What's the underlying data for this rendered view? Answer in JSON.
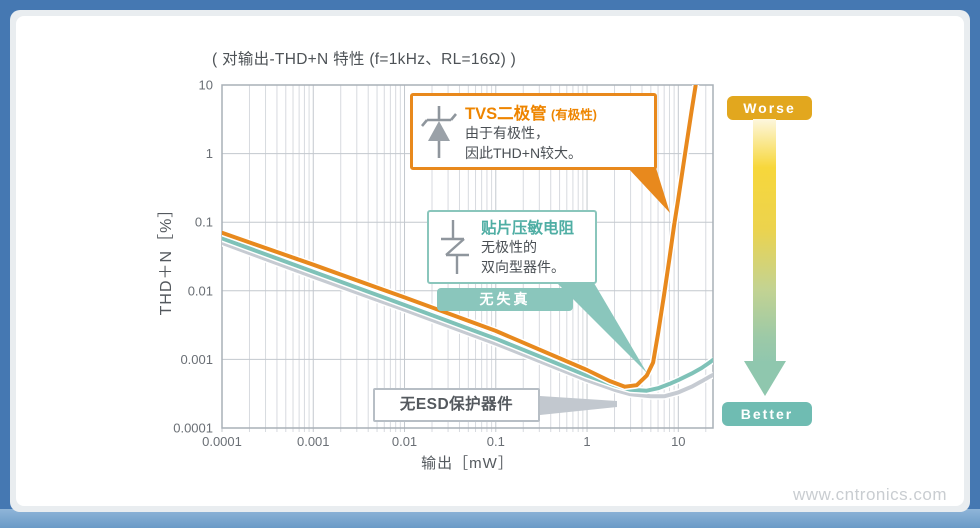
{
  "frame": {
    "watermark": "www.cntronics.com"
  },
  "header": {
    "title": "( 对输出-THD+N 特性 (f=1kHz、RL=16Ω) )"
  },
  "chart_data": {
    "type": "line",
    "title": "对输出-THD+N 特性",
    "condition": "f=1kHz、RL=16Ω",
    "xlabel": "输出［mW］",
    "ylabel": "THD＋N［%］",
    "x_scale": "log",
    "y_scale": "log",
    "xlim": [
      0.0001,
      24
    ],
    "ylim": [
      0.0001,
      10
    ],
    "grid": true,
    "legend_position": "none",
    "x_ticks": [
      {
        "v": 0.0001,
        "label": "0.0001"
      },
      {
        "v": 0.001,
        "label": "0.001"
      },
      {
        "v": 0.01,
        "label": "0.01"
      },
      {
        "v": 0.1,
        "label": "0.1"
      },
      {
        "v": 1,
        "label": "1"
      },
      {
        "v": 10,
        "label": "10"
      }
    ],
    "y_ticks": [
      {
        "v": 10,
        "label": "10"
      },
      {
        "v": 1,
        "label": "1"
      },
      {
        "v": 0.1,
        "label": "0.1"
      },
      {
        "v": 0.01,
        "label": "0.01"
      },
      {
        "v": 0.001,
        "label": "0.001"
      },
      {
        "v": 0.0001,
        "label": "0.0001"
      }
    ],
    "series": [
      {
        "name": "无ESD保护器件",
        "color": "#C6CBD2",
        "points": [
          [
            0.0001,
            0.05
          ],
          [
            0.001,
            0.016
          ],
          [
            0.01,
            0.0053
          ],
          [
            0.1,
            0.0017
          ],
          [
            1,
            0.0005
          ],
          [
            2,
            0.00036
          ],
          [
            3,
            0.00031
          ],
          [
            5,
            0.00029
          ],
          [
            7,
            0.00029
          ],
          [
            10,
            0.00033
          ],
          [
            14,
            0.0004
          ],
          [
            18,
            0.00048
          ],
          [
            22,
            0.00056
          ],
          [
            24.5,
            0.0006
          ]
        ]
      },
      {
        "name": "贴片压敏电阻",
        "color": "#7FC2B8",
        "points": [
          [
            0.0001,
            0.058
          ],
          [
            0.001,
            0.019
          ],
          [
            0.01,
            0.0062
          ],
          [
            0.1,
            0.002
          ],
          [
            1,
            0.00058
          ],
          [
            2,
            0.00042
          ],
          [
            3,
            0.00036
          ],
          [
            4.5,
            0.00035
          ],
          [
            6,
            0.00038
          ],
          [
            8,
            0.00044
          ],
          [
            10,
            0.0005
          ],
          [
            14,
            0.00062
          ],
          [
            18,
            0.00075
          ],
          [
            22,
            0.0009
          ],
          [
            24.5,
            0.001
          ]
        ]
      },
      {
        "name": "TVS二极管（有极性）",
        "color": "#E8891D",
        "points": [
          [
            0.0001,
            0.07
          ],
          [
            0.001,
            0.024
          ],
          [
            0.01,
            0.008
          ],
          [
            0.1,
            0.0026
          ],
          [
            1,
            0.0007
          ],
          [
            1.8,
            0.00048
          ],
          [
            2.6,
            0.0004
          ],
          [
            3.5,
            0.00042
          ],
          [
            4.5,
            0.00058
          ],
          [
            5.3,
            0.0009
          ],
          [
            6,
            0.0024
          ],
          [
            7,
            0.009
          ],
          [
            8,
            0.03
          ],
          [
            9,
            0.09
          ],
          [
            10,
            0.22
          ],
          [
            12,
            1.1
          ],
          [
            14,
            4.2
          ],
          [
            15.5,
            10
          ],
          [
            16,
            15
          ]
        ]
      }
    ]
  },
  "annotations": {
    "tvs_callout": {
      "title": "TVS二极管",
      "title_suffix": "(有极性)",
      "line1": "由于有极性，",
      "line2": "因此THD+N较大。",
      "border_color": "#E8891D"
    },
    "varistor_callout": {
      "title": "贴片压敏电阻",
      "line1": "无极性的",
      "line2": "双向型器件。",
      "border_color": "#8AC6BC"
    },
    "no_distortion_badge": "无失真",
    "no_esd_box": "无ESD保护器件"
  },
  "scale_indicator": {
    "worse_label": "Worse",
    "better_label": "Better",
    "worse_color": "#E2A71E",
    "better_color": "#6FBCB2"
  }
}
